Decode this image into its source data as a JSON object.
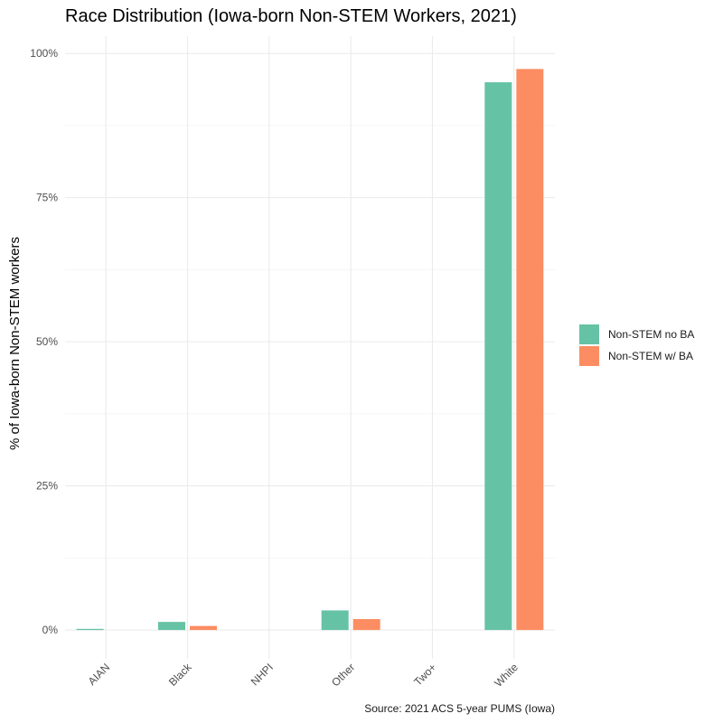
{
  "chart_data": {
    "type": "bar",
    "title": "Race Distribution (Iowa-born Non-STEM Workers, 2021)",
    "xlabel": "",
    "ylabel": "% of Iowa-born Non-STEM workers",
    "caption": "Source: 2021 ACS 5-year PUMS (Iowa)",
    "categories": [
      "AIAN",
      "Black",
      "NHPI",
      "Other",
      "Two+",
      "White"
    ],
    "series": [
      {
        "name": "Non-STEM no BA",
        "color": "#66C2A5",
        "values": [
          0.2,
          1.4,
          0.0,
          3.4,
          0.0,
          95.0
        ]
      },
      {
        "name": "Non-STEM w/ BA",
        "color": "#FC8D62",
        "values": [
          0.0,
          0.7,
          0.0,
          1.9,
          0.0,
          97.3
        ]
      }
    ],
    "ylim": [
      -5,
      103
    ],
    "yticks": [
      0,
      25,
      50,
      75,
      100
    ],
    "ytick_labels": [
      "0%",
      "25%",
      "50%",
      "75%",
      "100%"
    ],
    "grid": true,
    "legend_position": "right"
  }
}
